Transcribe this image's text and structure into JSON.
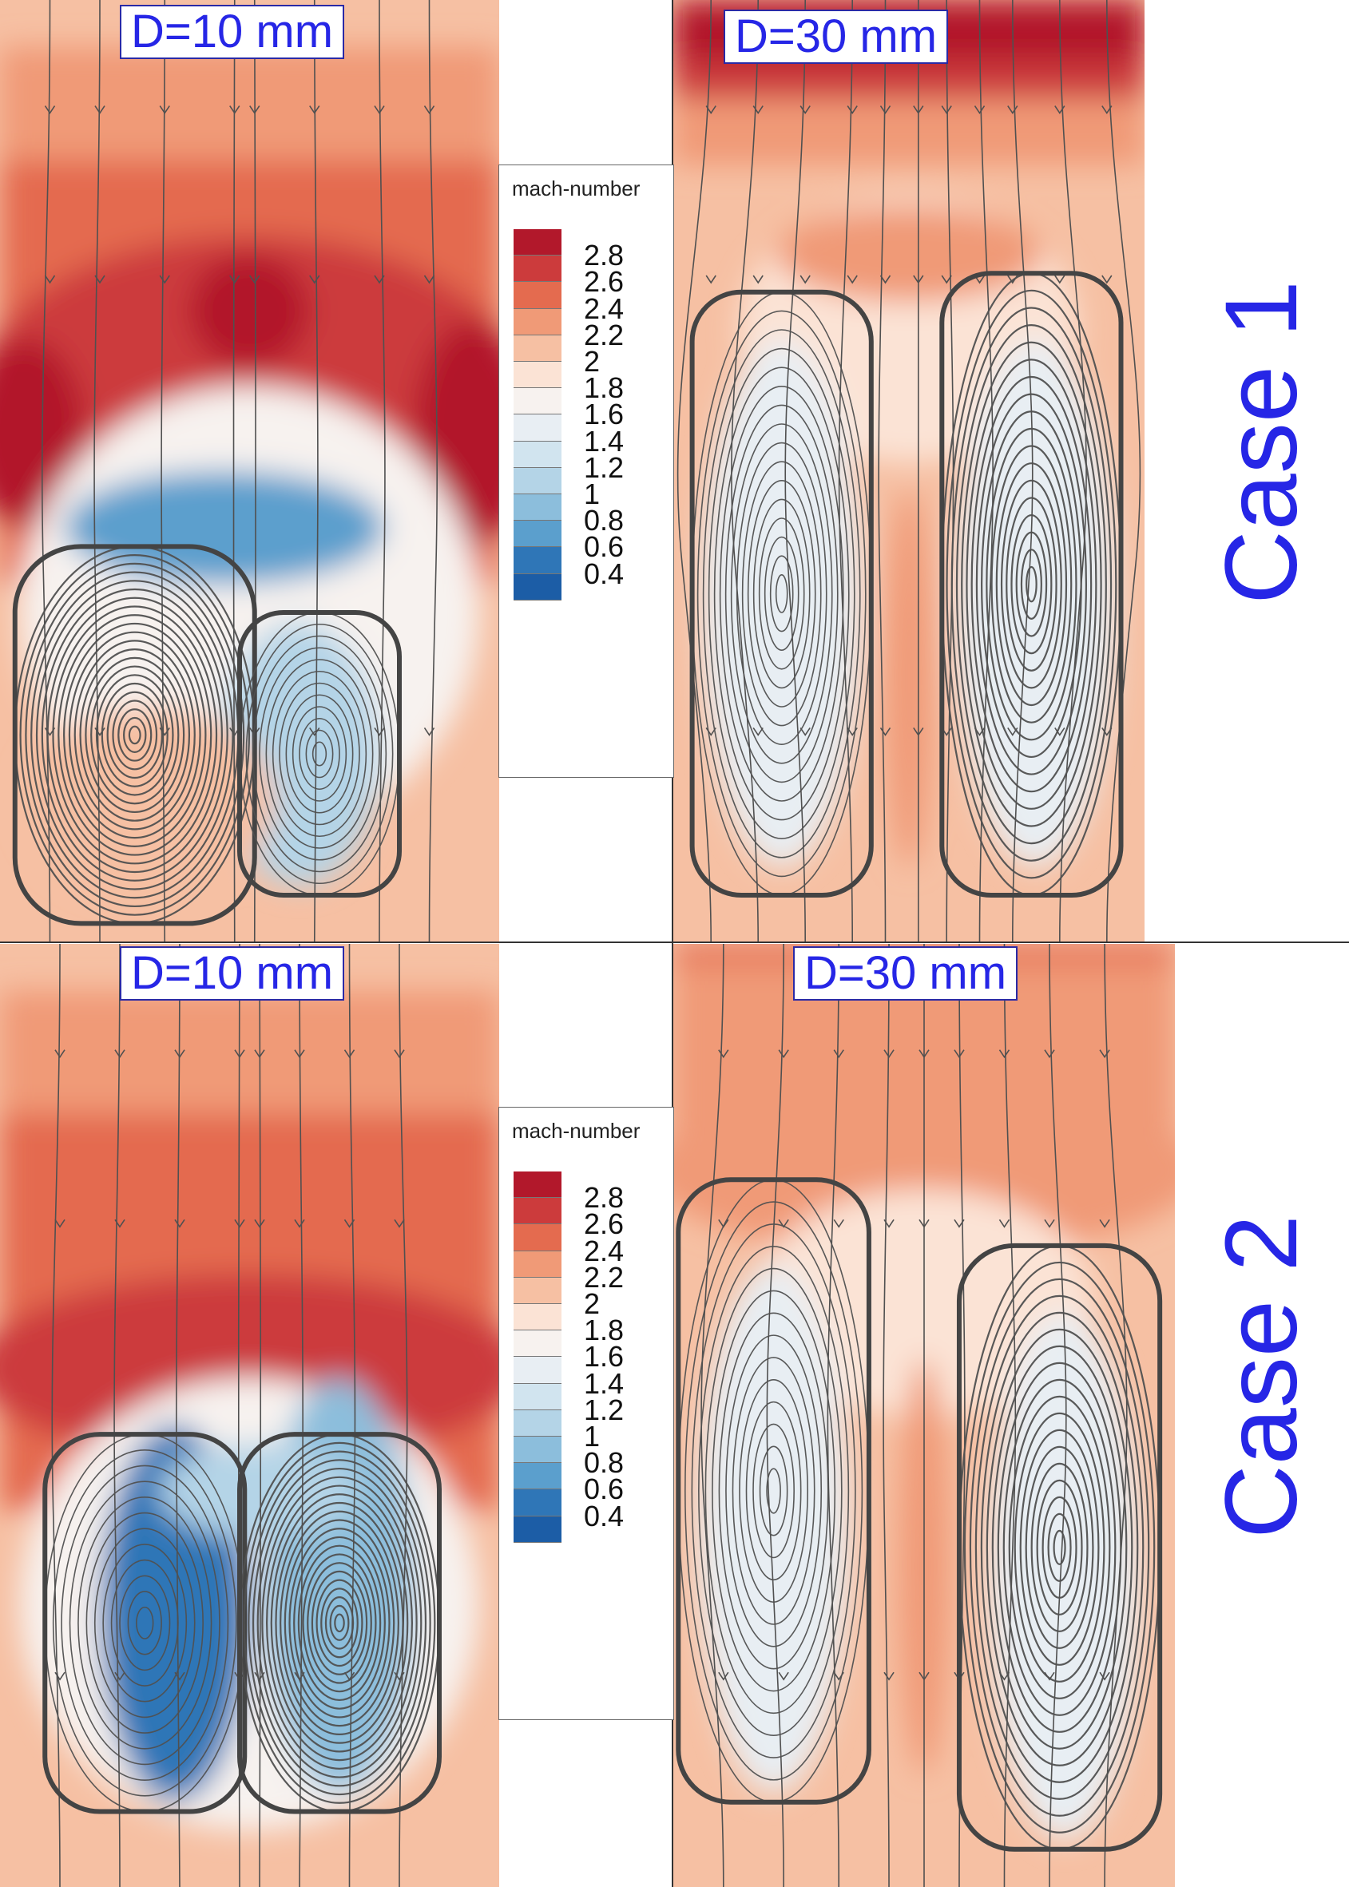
{
  "rows": [
    {
      "case_label": "Case 1",
      "panels": [
        {
          "label": "D=10 mm",
          "layout": "asymmetric"
        },
        {
          "label": "D=30 mm",
          "layout": "symmetric"
        }
      ]
    },
    {
      "case_label": "Case 2",
      "panels": [
        {
          "label": "D=10 mm",
          "layout": "asymmetric-blue"
        },
        {
          "label": "D=30 mm",
          "layout": "symmetric-offset"
        }
      ]
    }
  ],
  "legend": {
    "title": "mach-number",
    "levels": [
      "2.8",
      "2.6",
      "2.4",
      "2.2",
      "2",
      "1.8",
      "1.6",
      "1.4",
      "1.2",
      "1",
      "0.8",
      "0.6",
      "0.4"
    ],
    "colors": [
      "#b2182b",
      "#cc3b3c",
      "#e46b4f",
      "#f09a77",
      "#f6c0a3",
      "#fbe3d5",
      "#f7f2ef",
      "#e8eef3",
      "#d1e4ef",
      "#b4d4e7",
      "#8cbedc",
      "#5b9fcd",
      "#2f76b7",
      "#1c5da6"
    ]
  },
  "colors": {
    "label_text": "#2626e6",
    "streamline": "#505050"
  }
}
